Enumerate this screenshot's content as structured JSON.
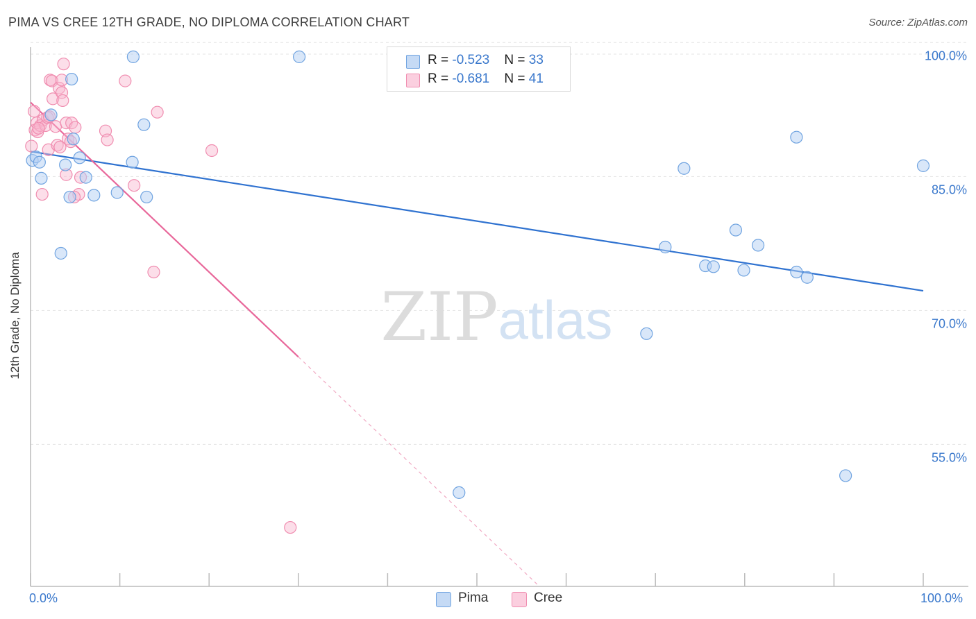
{
  "title": "PIMA VS CREE 12TH GRADE, NO DIPLOMA CORRELATION CHART",
  "source": "Source: ZipAtlas.com",
  "watermark": {
    "zip": "ZIP",
    "atlas": "atlas"
  },
  "colors": {
    "pima": "#6fa3e0",
    "pima_line": "#2f72d0",
    "cree": "#f08db0",
    "cree_line": "#e8679a",
    "tick_text": "#3a78cc"
  },
  "legend": {
    "pima": {
      "r_label": "R = ",
      "r_value": "-0.523",
      "n_label": "N = ",
      "n_value": "33"
    },
    "cree": {
      "r_label": "R = ",
      "r_value": "-0.681",
      "n_label": "N = ",
      "n_value": "41"
    }
  },
  "bottom_legend": {
    "pima": "Pima",
    "cree": "Cree"
  },
  "chart_data": {
    "type": "scatter",
    "title": "PIMA VS CREE 12TH GRADE, NO DIPLOMA CORRELATION CHART",
    "xlabel": "",
    "ylabel": "12th Grade, No Diploma",
    "xlim": [
      0,
      100
    ],
    "ylim": [
      40.5,
      101.5
    ],
    "x_tick_labels": [
      "0.0%",
      "100.0%"
    ],
    "y_ticks": [
      {
        "value": 100,
        "label": "100.0%"
      },
      {
        "value": 85,
        "label": "85.0%"
      },
      {
        "value": 70,
        "label": "70.0%"
      },
      {
        "value": 55,
        "label": "55.0%"
      }
    ],
    "grid": "horizontal dashed",
    "legend_placement": "top-center",
    "series": [
      {
        "name": "Pima",
        "points": [
          [
            0.2,
            88.2
          ],
          [
            0.6,
            88.6
          ],
          [
            1.2,
            86.2
          ],
          [
            2.3,
            93.3
          ],
          [
            4.6,
            97.3
          ],
          [
            4.8,
            90.6
          ],
          [
            3.9,
            87.7
          ],
          [
            5.5,
            88.5
          ],
          [
            6.2,
            86.3
          ],
          [
            4.4,
            84.1
          ],
          [
            7.1,
            84.3
          ],
          [
            9.7,
            84.6
          ],
          [
            11.5,
            99.8
          ],
          [
            12.7,
            92.2
          ],
          [
            11.4,
            88.0
          ],
          [
            13.0,
            84.1
          ],
          [
            3.4,
            77.8
          ],
          [
            30.1,
            99.8
          ],
          [
            48.0,
            51.0
          ],
          [
            69.0,
            68.8
          ],
          [
            71.1,
            78.5
          ],
          [
            73.2,
            87.3
          ],
          [
            75.6,
            76.4
          ],
          [
            76.5,
            76.3
          ],
          [
            79.0,
            80.4
          ],
          [
            79.9,
            75.9
          ],
          [
            81.5,
            78.7
          ],
          [
            85.8,
            75.7
          ],
          [
            85.8,
            90.8
          ],
          [
            87.0,
            75.1
          ],
          [
            91.3,
            52.9
          ],
          [
            100,
            87.6
          ],
          [
            1.0,
            88.0
          ]
        ],
        "trend": {
          "x": [
            0,
            100
          ],
          "y": [
            89.2,
            73.6
          ]
        }
      },
      {
        "name": "Cree",
        "points": [
          [
            0.1,
            89.8
          ],
          [
            0.5,
            91.6
          ],
          [
            0.8,
            91.4
          ],
          [
            0.7,
            92.4
          ],
          [
            1.1,
            92.1
          ],
          [
            1.4,
            92.7
          ],
          [
            1.7,
            92.1
          ],
          [
            1.9,
            93.0
          ],
          [
            2.0,
            89.4
          ],
          [
            2.2,
            97.2
          ],
          [
            2.4,
            97.1
          ],
          [
            2.5,
            95.1
          ],
          [
            2.8,
            92.0
          ],
          [
            3.0,
            89.9
          ],
          [
            3.2,
            96.3
          ],
          [
            3.3,
            89.7
          ],
          [
            3.5,
            97.2
          ],
          [
            3.5,
            95.8
          ],
          [
            3.6,
            94.9
          ],
          [
            3.7,
            99.0
          ],
          [
            4.0,
            86.6
          ],
          [
            4.0,
            92.4
          ],
          [
            4.2,
            90.6
          ],
          [
            4.5,
            90.3
          ],
          [
            4.6,
            92.4
          ],
          [
            5.0,
            91.9
          ],
          [
            5.4,
            84.4
          ],
          [
            5.6,
            86.3
          ],
          [
            8.4,
            91.5
          ],
          [
            8.6,
            90.5
          ],
          [
            10.6,
            97.1
          ],
          [
            11.6,
            85.4
          ],
          [
            13.8,
            75.7
          ],
          [
            14.2,
            93.6
          ],
          [
            20.3,
            89.3
          ],
          [
            29.1,
            47.1
          ],
          [
            1.3,
            84.4
          ],
          [
            2.1,
            93.1
          ],
          [
            0.4,
            93.7
          ],
          [
            4.9,
            84.1
          ],
          [
            0.9,
            91.8
          ]
        ],
        "trend": {
          "x": [
            0,
            30
          ],
          "y": [
            94.7,
            66.2
          ]
        },
        "trend_extension": {
          "x": [
            30,
            57
          ],
          "y": [
            66.2,
            40.5
          ]
        }
      }
    ]
  }
}
